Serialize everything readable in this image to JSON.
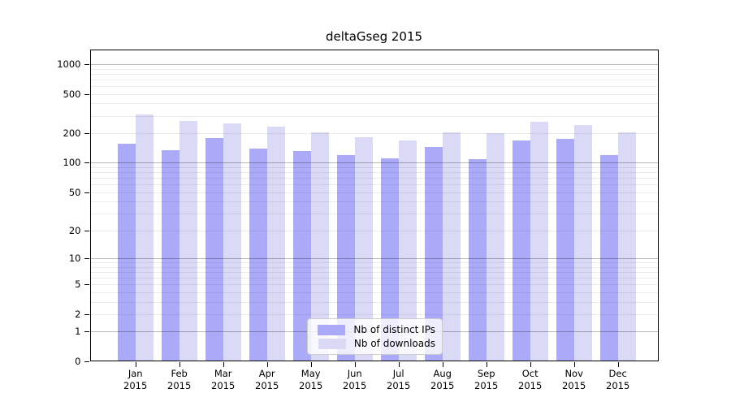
{
  "chart_data": {
    "type": "bar",
    "title": "deltaGseg 2015",
    "categories": [
      "Jan",
      "Feb",
      "Mar",
      "Apr",
      "May",
      "Jun",
      "Jul",
      "Aug",
      "Sep",
      "Oct",
      "Nov",
      "Dec"
    ],
    "category_sublabel": "2015",
    "series": [
      {
        "name": "Nb of distinct IPs",
        "color": "#aaaaf8",
        "values": [
          157,
          134,
          178,
          140,
          132,
          120,
          110,
          145,
          108,
          170,
          175,
          120
        ]
      },
      {
        "name": "Nb of downloads",
        "color": "#dadaf7",
        "values": [
          310,
          265,
          250,
          235,
          203,
          181,
          168,
          204,
          199,
          260,
          240,
          203
        ]
      }
    ],
    "yticks": [
      0,
      1,
      2,
      5,
      10,
      20,
      50,
      100,
      200,
      500,
      1000
    ],
    "ylim": [
      0,
      1400
    ],
    "yscale": "log10(1+v)",
    "grid": "horizontal major+minor",
    "legend_position": "lower center inside plot",
    "legend_labels": [
      "Nb of distinct IPs",
      "Nb of downloads"
    ]
  }
}
